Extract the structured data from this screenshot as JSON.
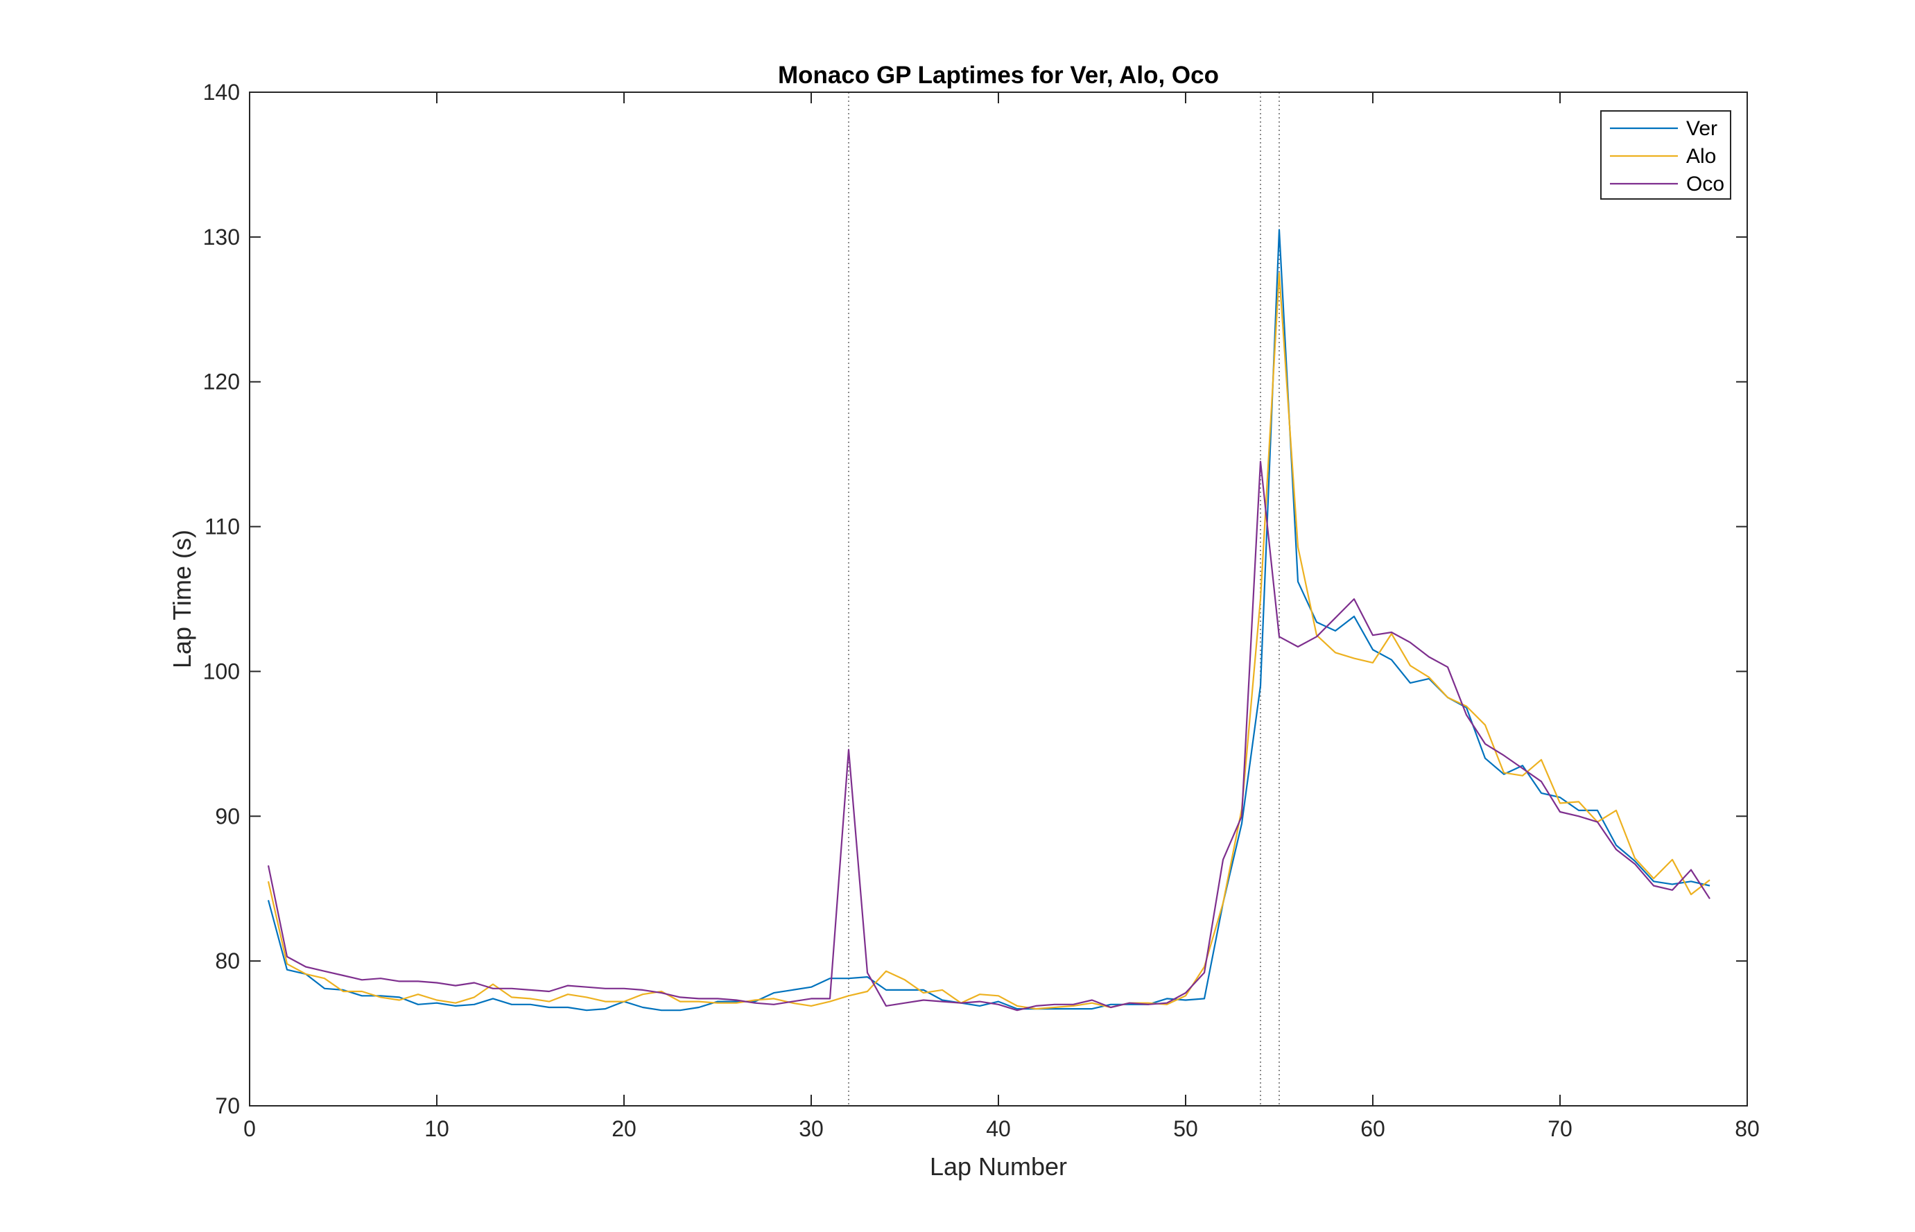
{
  "chart_data": {
    "type": "line",
    "title": "Monaco GP Laptimes for Ver, Alo, Oco",
    "xlabel": "Lap Number",
    "ylabel": "Lap Time (s)",
    "xlim": [
      0,
      80
    ],
    "ylim": [
      70,
      140
    ],
    "xticks": [
      0,
      10,
      20,
      30,
      40,
      50,
      60,
      70,
      80
    ],
    "yticks": [
      70,
      80,
      90,
      100,
      110,
      120,
      130,
      140
    ],
    "grid": false,
    "legend_position": "top-right",
    "vertical_markers": [
      32,
      54,
      55
    ],
    "series": [
      {
        "name": "Ver",
        "color": "#0072BD",
        "x": [
          1,
          2,
          3,
          4,
          5,
          6,
          7,
          8,
          9,
          10,
          11,
          12,
          13,
          14,
          15,
          16,
          17,
          18,
          19,
          20,
          21,
          22,
          23,
          24,
          25,
          26,
          27,
          28,
          29,
          30,
          31,
          32,
          33,
          34,
          35,
          36,
          37,
          38,
          39,
          40,
          41,
          42,
          43,
          44,
          45,
          46,
          47,
          48,
          49,
          50,
          51,
          52,
          53,
          54,
          55,
          56,
          57,
          58,
          59,
          60,
          61,
          62,
          63,
          64,
          65,
          66,
          67,
          68,
          69,
          70,
          71,
          72,
          73,
          74,
          75,
          76,
          77,
          78
        ],
        "y": [
          84.2,
          79.4,
          79.1,
          78.1,
          78.0,
          77.6,
          77.6,
          77.5,
          77.0,
          77.1,
          76.9,
          77.0,
          77.4,
          77.0,
          77.0,
          76.8,
          76.8,
          76.6,
          76.7,
          77.2,
          76.8,
          76.6,
          76.6,
          76.8,
          77.2,
          77.2,
          77.2,
          77.8,
          78.0,
          78.2,
          78.8,
          78.8,
          78.9,
          78.0,
          78.0,
          78.0,
          77.3,
          77.1,
          76.9,
          77.2,
          76.7,
          76.7,
          76.7,
          76.7,
          76.7,
          77.0,
          77.0,
          77.0,
          77.4,
          77.3,
          77.4,
          84.0,
          89.5,
          99.0,
          130.5,
          106.2,
          103.4,
          102.8,
          103.8,
          101.5,
          100.8,
          99.2,
          99.5,
          98.2,
          97.5,
          94.0,
          92.9,
          93.5,
          91.6,
          91.3,
          90.4,
          90.4,
          88.0,
          86.9,
          85.5,
          85.3,
          85.5,
          85.2
        ]
      },
      {
        "name": "Alo",
        "color": "#EDB120",
        "x": [
          1,
          2,
          3,
          4,
          5,
          6,
          7,
          8,
          9,
          10,
          11,
          12,
          13,
          14,
          15,
          16,
          17,
          18,
          19,
          20,
          21,
          22,
          23,
          24,
          25,
          26,
          27,
          28,
          29,
          30,
          31,
          32,
          33,
          34,
          35,
          36,
          37,
          38,
          39,
          40,
          41,
          42,
          43,
          44,
          45,
          46,
          47,
          48,
          49,
          50,
          51,
          52,
          53,
          54,
          55,
          56,
          57,
          58,
          59,
          60,
          61,
          62,
          63,
          64,
          65,
          66,
          67,
          68,
          69,
          70,
          71,
          72,
          73,
          74,
          75,
          76,
          77,
          78
        ],
        "y": [
          85.5,
          79.8,
          79.1,
          78.8,
          77.9,
          77.9,
          77.5,
          77.3,
          77.7,
          77.3,
          77.1,
          77.5,
          78.4,
          77.5,
          77.4,
          77.2,
          77.7,
          77.5,
          77.2,
          77.2,
          77.7,
          77.9,
          77.2,
          77.2,
          77.1,
          77.1,
          77.3,
          77.4,
          77.1,
          76.9,
          77.2,
          77.6,
          77.9,
          79.3,
          78.7,
          77.8,
          78.0,
          77.1,
          77.7,
          77.6,
          76.9,
          76.7,
          76.8,
          76.9,
          77.1,
          76.8,
          77.1,
          77.1,
          77.0,
          77.6,
          79.6,
          84.0,
          90.5,
          105.0,
          127.5,
          108.6,
          102.5,
          101.3,
          100.9,
          100.6,
          102.6,
          100.4,
          99.6,
          98.2,
          97.6,
          96.3,
          93.0,
          92.8,
          93.9,
          90.9,
          91.0,
          89.6,
          90.4,
          87.1,
          85.7,
          87.0,
          84.6,
          85.6
        ]
      },
      {
        "name": "Oco",
        "color": "#7E2F8E",
        "x": [
          1,
          2,
          3,
          4,
          5,
          6,
          7,
          8,
          9,
          10,
          11,
          12,
          13,
          14,
          15,
          16,
          17,
          18,
          19,
          20,
          21,
          22,
          23,
          24,
          25,
          26,
          27,
          28,
          29,
          30,
          31,
          32,
          33,
          34,
          35,
          36,
          37,
          38,
          39,
          40,
          41,
          42,
          43,
          44,
          45,
          46,
          47,
          48,
          49,
          50,
          51,
          52,
          53,
          54,
          55,
          56,
          57,
          58,
          59,
          60,
          61,
          62,
          63,
          64,
          65,
          66,
          67,
          68,
          69,
          70,
          71,
          72,
          73,
          74,
          75,
          76,
          77,
          78
        ],
        "y": [
          86.6,
          80.3,
          79.6,
          79.3,
          79.0,
          78.7,
          78.8,
          78.6,
          78.6,
          78.5,
          78.3,
          78.5,
          78.1,
          78.1,
          78.0,
          77.9,
          78.3,
          78.2,
          78.1,
          78.1,
          78.0,
          77.8,
          77.5,
          77.4,
          77.4,
          77.3,
          77.1,
          77.0,
          77.2,
          77.4,
          77.4,
          94.6,
          79.2,
          76.9,
          77.1,
          77.3,
          77.2,
          77.1,
          77.2,
          77.0,
          76.6,
          76.9,
          77.0,
          77.0,
          77.3,
          76.8,
          77.1,
          77.0,
          77.1,
          77.8,
          79.2,
          87.0,
          90.0,
          114.5,
          102.4,
          101.7,
          102.4,
          103.7,
          105.0,
          102.5,
          102.7,
          102.0,
          101.0,
          100.3,
          97.0,
          95.0,
          94.2,
          93.3,
          92.4,
          90.3,
          90.0,
          89.6,
          87.7,
          86.7,
          85.2,
          84.9,
          86.3,
          84.3
        ]
      }
    ]
  }
}
